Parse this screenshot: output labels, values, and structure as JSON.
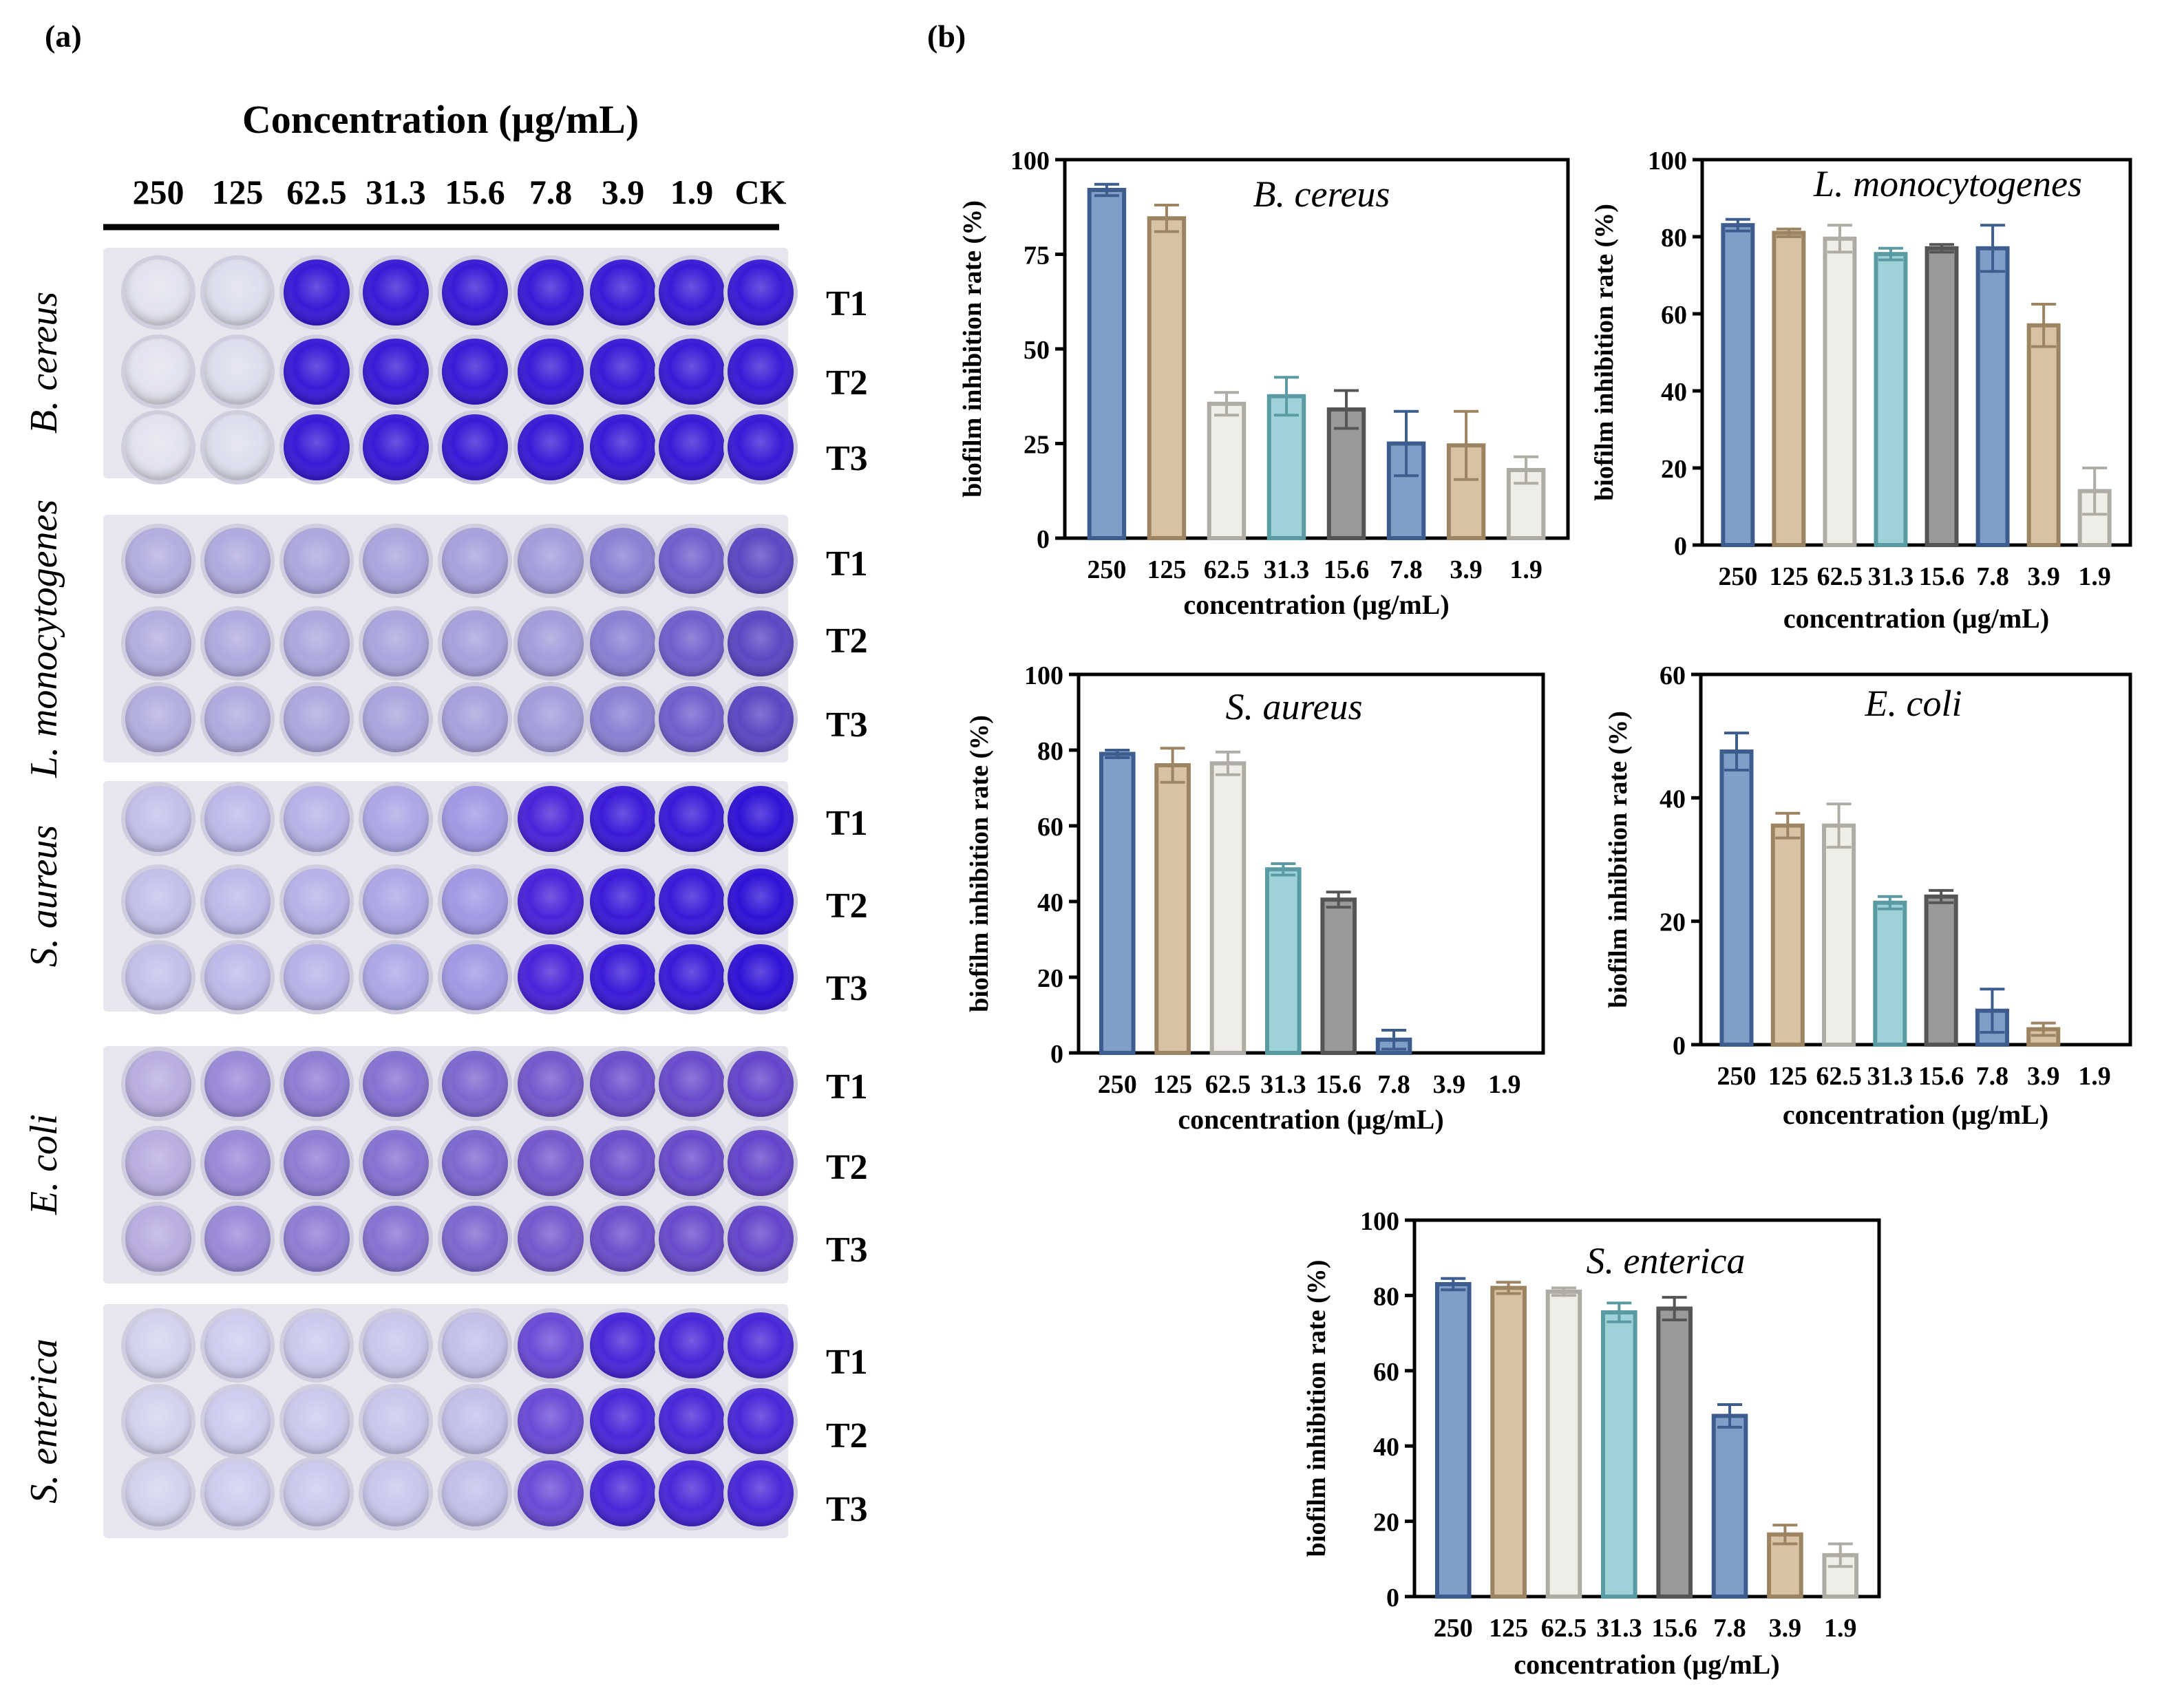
{
  "panel_a": {
    "label": "(a)",
    "header": "Concentration (µg/mL)",
    "columns": [
      "250",
      "125",
      "62.5",
      "31.3",
      "15.6",
      "7.8",
      "3.9",
      "1.9",
      "CK"
    ],
    "row_labels": [
      "T1",
      "T2",
      "T3"
    ],
    "plates": [
      {
        "organism": "B. cereus",
        "well_colors": [
          "#e2e3ef",
          "#dedfee",
          "#3a1ad6",
          "#3a1ad6",
          "#3a1ad6",
          "#3a1ad6",
          "#3a1ad6",
          "#3a1ad6",
          "#3a1ad6"
        ]
      },
      {
        "organism": "L. monocytogenes",
        "well_colors": [
          "#b3aee0",
          "#b0abdf",
          "#ada8de",
          "#aaa5dd",
          "#a7a1dc",
          "#a39ddb",
          "#8a80d4",
          "#6f5fcd",
          "#5b47c3"
        ]
      },
      {
        "organism": "S. aureus",
        "well_colors": [
          "#c3c1ea",
          "#bdbaea",
          "#b7b3e8",
          "#aca8e6",
          "#a099e4",
          "#4a23d9",
          "#3b1ad8",
          "#3a1ad8",
          "#2f12d6"
        ]
      },
      {
        "organism": "E. coli",
        "well_colors": [
          "#b9aee0",
          "#9a8ad8",
          "#8f7dd4",
          "#8672d2",
          "#7d67cf",
          "#7558cd",
          "#6c4dcc",
          "#6a4acc",
          "#6544cb"
        ]
      },
      {
        "organism": "S. enterica",
        "well_colors": [
          "#d4d3ee",
          "#cfcdee",
          "#cccaed",
          "#c9c7ec",
          "#c3c0ea",
          "#6a4bd6",
          "#4a27d8",
          "#4a27d8",
          "#4a27d8"
        ]
      }
    ]
  },
  "panel_b": {
    "label": "(b)"
  },
  "chart_data": [
    {
      "type": "bar",
      "title": "B. cereus",
      "categories": [
        "250",
        "125",
        "62.5",
        "31.3",
        "15.6",
        "7.8",
        "3.9",
        "1.9"
      ],
      "values": [
        92,
        84.5,
        35.5,
        37.5,
        34,
        25,
        24.5,
        18
      ],
      "errors": [
        1.5,
        3.5,
        3,
        5,
        5,
        8.5,
        9,
        3.5
      ],
      "ylabel": "biofilm inhibition rate (%)",
      "xlabel": "concentration (µg/mL)",
      "ylim": [
        0,
        100
      ],
      "yticks": [
        0,
        25,
        50,
        75,
        100
      ]
    },
    {
      "type": "bar",
      "title": "L. monocytogenes",
      "categories": [
        "250",
        "125",
        "62.5",
        "31.3",
        "15.6",
        "7.8",
        "3.9",
        "1.9"
      ],
      "values": [
        83,
        81,
        79.5,
        75.5,
        77,
        77,
        57,
        14
      ],
      "errors": [
        1.5,
        1,
        3.5,
        1.5,
        1,
        6,
        5.5,
        6
      ],
      "ylabel": "biofilm inhibition rate (%)",
      "xlabel": "concentration (µg/mL)",
      "ylim": [
        0,
        100
      ],
      "yticks": [
        0,
        20,
        40,
        60,
        80,
        100
      ]
    },
    {
      "type": "bar",
      "title": "S. aureus",
      "categories": [
        "250",
        "125",
        "62.5",
        "31.3",
        "15.6",
        "7.8",
        "3.9",
        "1.9"
      ],
      "values": [
        79,
        76,
        76.5,
        48.5,
        40.5,
        3.5,
        0,
        0
      ],
      "errors": [
        1,
        4.5,
        3,
        1.5,
        2,
        2.5,
        0,
        0
      ],
      "ylabel": "biofilm inhibition rate (%)",
      "xlabel": "concentration (µg/mL)",
      "ylim": [
        0,
        100
      ],
      "yticks": [
        0,
        20,
        40,
        60,
        80,
        100
      ]
    },
    {
      "type": "bar",
      "title": "E. coli",
      "categories": [
        "250",
        "125",
        "62.5",
        "31.3",
        "15.6",
        "7.8",
        "3.9",
        "1.9"
      ],
      "values": [
        47.5,
        35.5,
        35.5,
        23,
        24,
        5.5,
        2.5,
        0
      ],
      "errors": [
        3,
        2,
        3.5,
        1,
        1,
        3.5,
        1,
        0
      ],
      "ylabel": "biofilm inhibition rate (%)",
      "xlabel": "concentration (µg/mL)",
      "ylim": [
        0,
        60
      ],
      "yticks": [
        0,
        20,
        40,
        60
      ]
    },
    {
      "type": "bar",
      "title": "S. enterica",
      "categories": [
        "250",
        "125",
        "62.5",
        "31.3",
        "15.6",
        "7.8",
        "3.9",
        "1.9"
      ],
      "values": [
        83,
        82,
        81,
        75.5,
        76.5,
        48,
        16.5,
        11
      ],
      "errors": [
        1.5,
        1.5,
        1,
        2.5,
        3,
        3,
        2.5,
        3
      ],
      "ylabel": "biofilm inhibition rate (%)",
      "xlabel": "concentration (µg/mL)",
      "ylim": [
        0,
        100
      ],
      "yticks": [
        0,
        20,
        40,
        60,
        80,
        100
      ]
    }
  ],
  "bar_palette": [
    {
      "fill": "#7f9ec8",
      "stroke": "#3d5d8f"
    },
    {
      "fill": "#d7c3a4",
      "stroke": "#9c8462"
    },
    {
      "fill": "#efede7",
      "stroke": "#aeaca5"
    },
    {
      "fill": "#9fd2d8",
      "stroke": "#5a9aa3"
    },
    {
      "fill": "#9a9a9a",
      "stroke": "#555555"
    },
    {
      "fill": "#7f9ec8",
      "stroke": "#3d5d8f"
    },
    {
      "fill": "#d7c3a4",
      "stroke": "#9c8462"
    },
    {
      "fill": "#efede7",
      "stroke": "#aeaca5"
    }
  ]
}
